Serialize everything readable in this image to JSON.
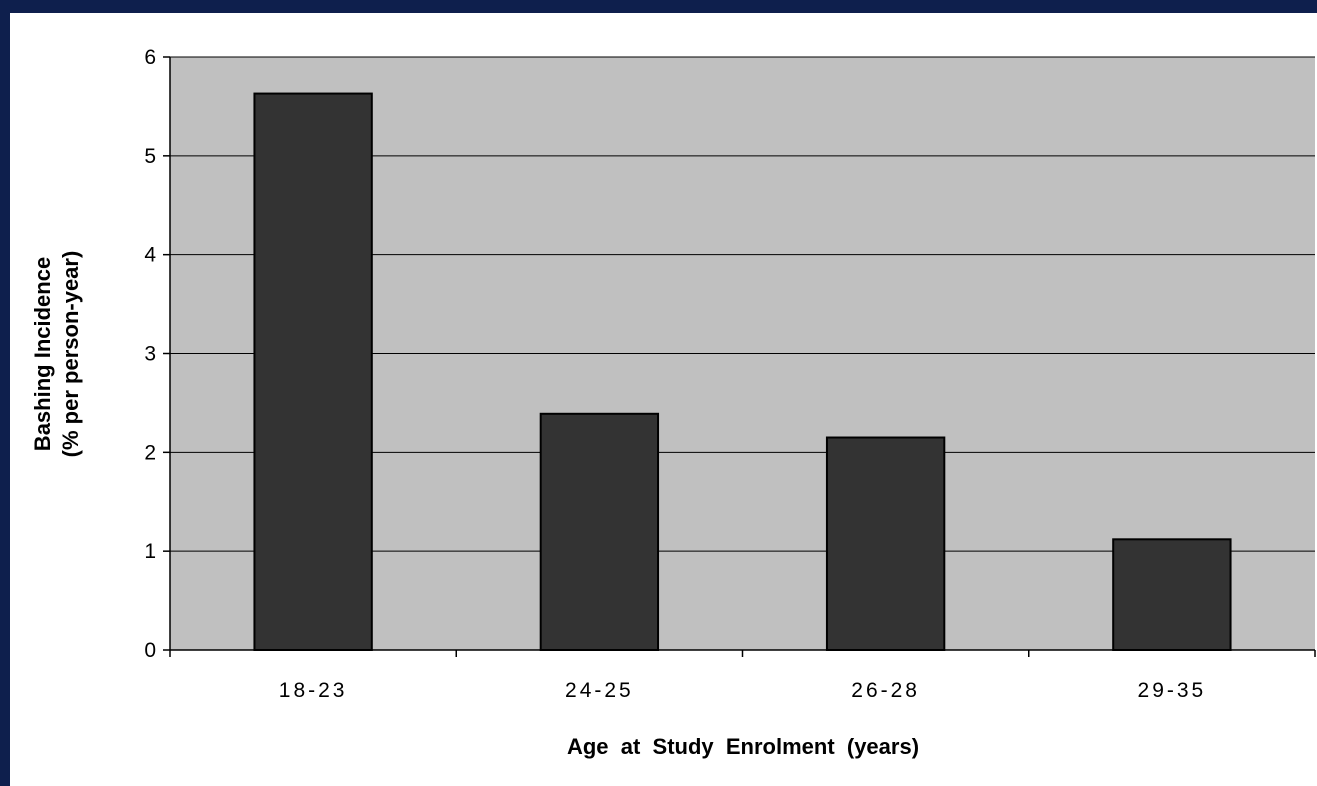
{
  "colors": {
    "frame": "#0e1f4d",
    "plot_background": "#c0c0c0",
    "bar_fill": "#333333",
    "gridline": "#000000"
  },
  "chart_data": {
    "type": "bar",
    "categories": [
      "18-23",
      "24-25",
      "26-28",
      "29-35"
    ],
    "values": [
      5.63,
      2.39,
      2.15,
      1.12
    ],
    "xlabel": "Age  at  Study  Enrolment  (years)",
    "ylabel_line1": "Bashing Incidence",
    "ylabel_line2": "(% per person-year)",
    "ylim": [
      0,
      6
    ],
    "yticks": [
      "0",
      "1",
      "2",
      "3",
      "4",
      "5",
      "6"
    ],
    "grid": true,
    "legend": "none"
  }
}
